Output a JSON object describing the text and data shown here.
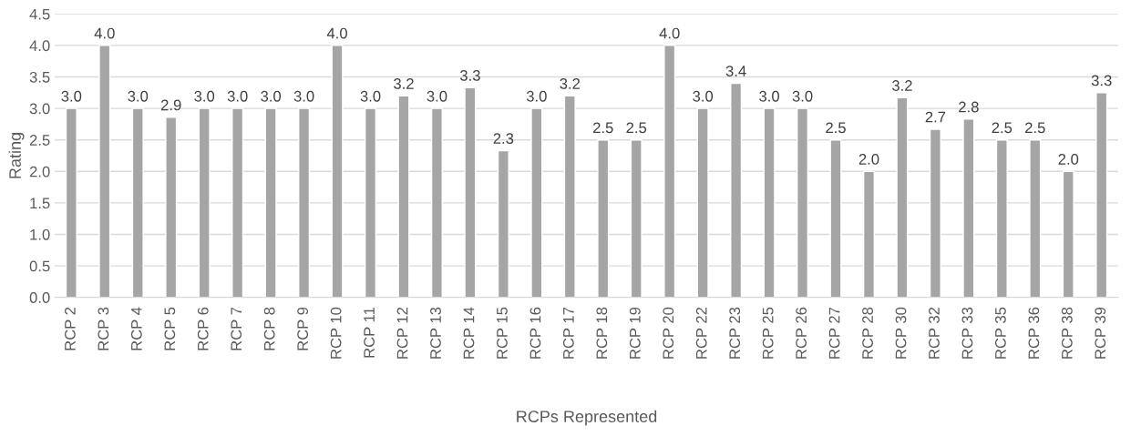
{
  "chart_data": {
    "type": "bar",
    "xlabel": "RCPs Represented",
    "ylabel": "Rating",
    "categories": [
      "RCP 2",
      "RCP 3",
      "RCP 4",
      "RCP 5",
      "RCP 6",
      "RCP 7",
      "RCP 8",
      "RCP 9",
      "RCP 10",
      "RCP 11",
      "RCP 12",
      "RCP 13",
      "RCP 14",
      "RCP 15",
      "RCP 16",
      "RCP 17",
      "RCP 18",
      "RCP 19",
      "RCP 20",
      "RCP 22",
      "RCP 23",
      "RCP 25",
      "RCP 26",
      "RCP 27",
      "RCP 28",
      "RCP 30",
      "RCP 32",
      "RCP 33",
      "RCP 35",
      "RCP 36",
      "RCP 38",
      "RCP 39"
    ],
    "values": [
      3.0,
      4.0,
      3.0,
      2.86,
      3.0,
      3.0,
      3.0,
      3.0,
      4.0,
      3.0,
      3.2,
      3.0,
      3.33,
      2.33,
      3.0,
      3.2,
      2.5,
      2.5,
      4.0,
      3.0,
      3.4,
      3.0,
      3.0,
      2.5,
      2.0,
      3.17,
      2.67,
      2.83,
      2.5,
      2.5,
      2.0,
      3.25
    ],
    "value_labels": [
      "3.0",
      "4.0",
      "3.0",
      "2.9",
      "3.0",
      "3.0",
      "3.0",
      "3.0",
      "4.0",
      "3.0",
      "3.2",
      "3.0",
      "3.3",
      "2.3",
      "3.0",
      "3.2",
      "2.5",
      "2.5",
      "4.0",
      "3.0",
      "3.4",
      "3.0",
      "3.0",
      "2.5",
      "2.0",
      "3.2",
      "2.7",
      "2.8",
      "2.5",
      "2.5",
      "2.0",
      "3.3"
    ],
    "color": "#a5a5a5",
    "ylim": [
      0,
      4.5
    ],
    "yticks": [
      {
        "value": 0,
        "label": "0.0"
      },
      {
        "value": 0.5,
        "label": "0.5"
      },
      {
        "value": 1,
        "label": "1.0"
      },
      {
        "value": 1.5,
        "label": "1.5"
      },
      {
        "value": 2,
        "label": "2.0"
      },
      {
        "value": 2.5,
        "label": "2.5"
      },
      {
        "value": 3,
        "label": "3.0"
      },
      {
        "value": 3.5,
        "label": "3.5"
      },
      {
        "value": 4,
        "label": "4.0"
      },
      {
        "value": 4.5,
        "label": "4.5"
      }
    ],
    "grid": "y",
    "legend": false
  }
}
